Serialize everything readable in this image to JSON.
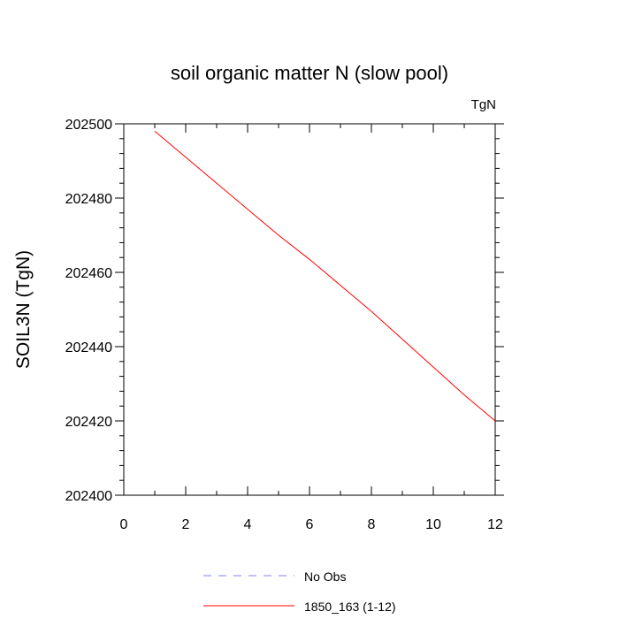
{
  "chart_data": {
    "type": "line",
    "title": "soil organic matter N (slow pool)",
    "units_label": "TgN",
    "ylabel": "SOIL3N  (TgN)",
    "xlabel": "",
    "xlim": [
      0,
      12
    ],
    "ylim": [
      202400,
      202500
    ],
    "x_ticks": [
      0,
      2,
      4,
      6,
      8,
      10,
      12
    ],
    "y_ticks": [
      202400,
      202420,
      202440,
      202460,
      202480,
      202500
    ],
    "grid": false,
    "legend_position": "bottom",
    "series": [
      {
        "name": "No Obs",
        "color": "#8080ff",
        "style": "dashed",
        "x": [],
        "y": []
      },
      {
        "name": "1850_163 (1-12)",
        "color": "#ff0000",
        "style": "solid",
        "x": [
          1,
          2,
          3,
          4,
          5,
          6,
          7,
          8,
          9,
          10,
          11,
          12
        ],
        "y": [
          202498,
          202491,
          202484,
          202477,
          202470,
          202463.5,
          202456.5,
          202449.5,
          202442,
          202434.5,
          202427,
          202420
        ]
      }
    ]
  }
}
